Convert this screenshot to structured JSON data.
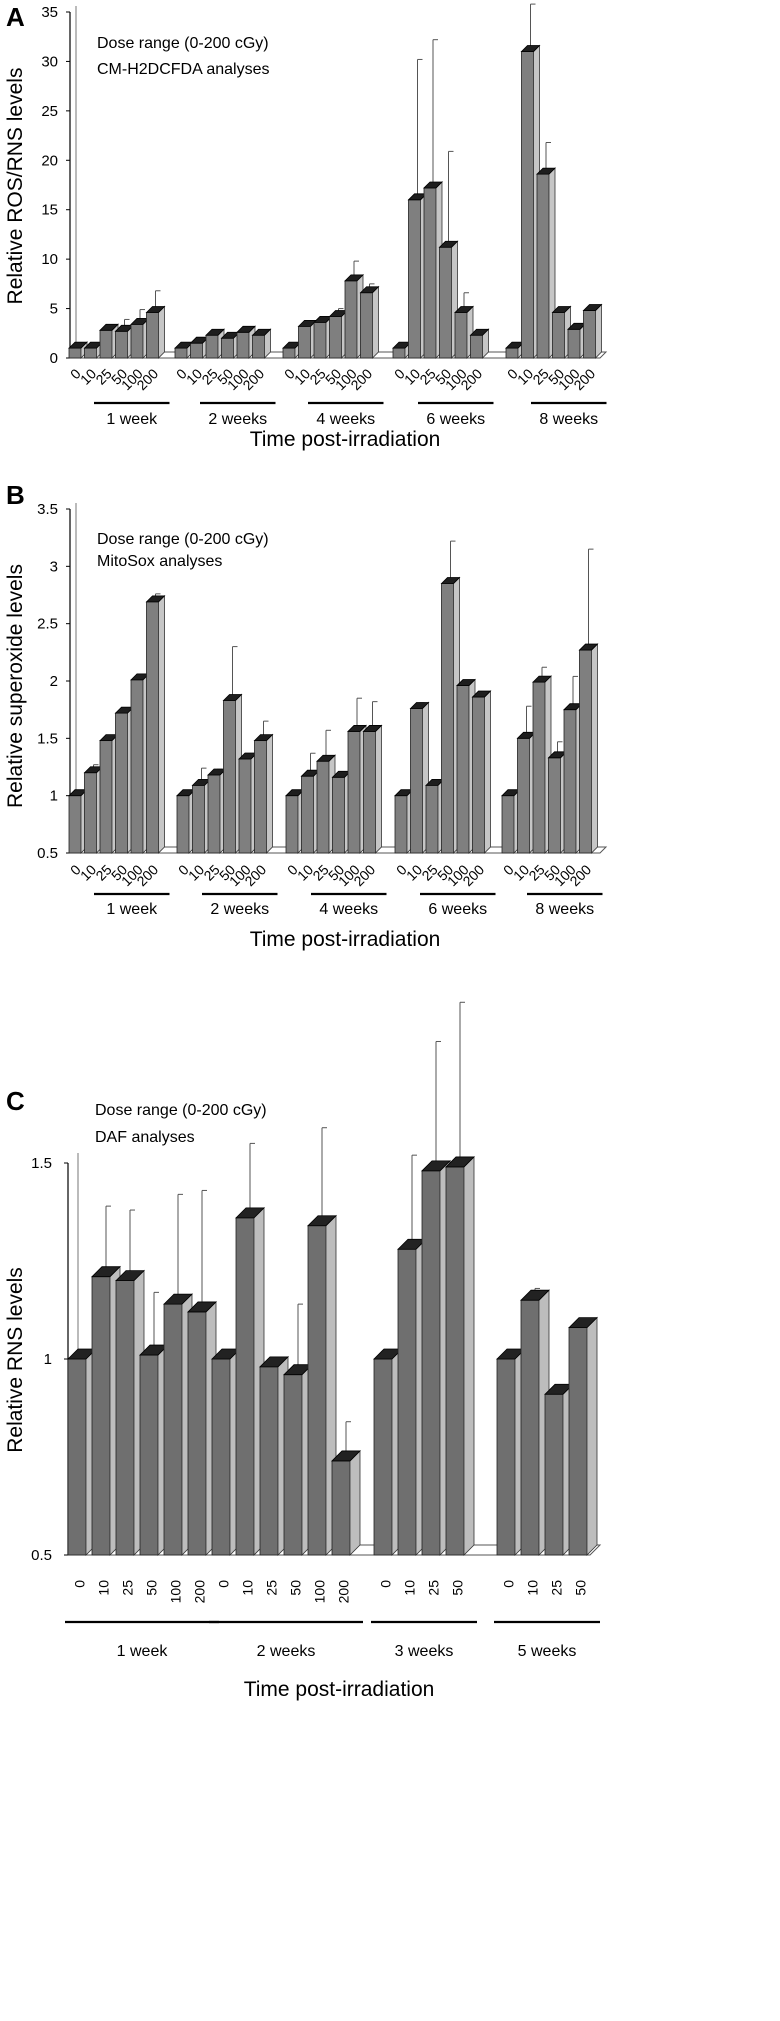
{
  "chart_data": [
    {
      "panel": "A",
      "type": "bar",
      "annotation_lines": [
        "Dose range (0-200 cGy)",
        "CM-H2DCFDA analyses"
      ],
      "ylabel": "Relative ROS/RNS levels",
      "xlabel": "Time post-irradiation",
      "ylim": [
        0,
        35
      ],
      "yticks": [
        "0",
        "5",
        "10",
        "15",
        "20",
        "25",
        "30",
        "35"
      ],
      "doses": [
        "0",
        "10",
        "25",
        "50",
        "100",
        "200"
      ],
      "groups": [
        {
          "label": "1 week",
          "values": [
            1,
            1,
            2.8,
            2.7,
            3.4,
            4.6
          ],
          "errors": [
            0,
            0,
            0.5,
            1.2,
            1.5,
            2.2
          ]
        },
        {
          "label": "2 weeks",
          "values": [
            1,
            1.5,
            2.3,
            2.0,
            2.6,
            2.3
          ],
          "errors": [
            0,
            0,
            0.2,
            0.2,
            0.4,
            0.5
          ]
        },
        {
          "label": "4 weeks",
          "values": [
            1,
            3.2,
            3.6,
            4.2,
            7.8,
            6.6
          ],
          "errors": [
            0,
            0,
            0,
            0.8,
            2.0,
            0.9
          ]
        },
        {
          "label": "6 weeks",
          "values": [
            1,
            16,
            17.2,
            11.2,
            4.6,
            2.3
          ],
          "errors": [
            0,
            14.2,
            15,
            9.7,
            2.0,
            0
          ]
        },
        {
          "label": "8 weeks",
          "values": [
            1,
            31,
            18.6,
            4.6,
            2.9,
            4.8
          ],
          "errors": [
            0,
            4.8,
            3.2,
            0,
            0,
            0
          ]
        }
      ]
    },
    {
      "panel": "B",
      "type": "bar",
      "annotation_lines": [
        "Dose range (0-200 cGy)",
        "MitoSox analyses"
      ],
      "ylabel": "Relative superoxide levels",
      "xlabel": "Time post-irradiation",
      "ylim": [
        0.5,
        3.5
      ],
      "yticks": [
        "0.5",
        "1",
        "1.5",
        "2",
        "2.5",
        "3",
        "3.5"
      ],
      "doses": [
        "0",
        "10",
        "25",
        "50",
        "100",
        "200"
      ],
      "groups": [
        {
          "label": "1 week",
          "values": [
            1,
            1.2,
            1.48,
            1.72,
            2.01,
            2.69
          ],
          "errors": [
            0,
            0.07,
            0,
            0,
            0,
            0.07
          ]
        },
        {
          "label": "2 weeks",
          "values": [
            1,
            1.09,
            1.18,
            1.83,
            1.32,
            1.48
          ],
          "errors": [
            0,
            0.15,
            0.05,
            0.47,
            0,
            0.17
          ]
        },
        {
          "label": "4 weeks",
          "values": [
            1,
            1.17,
            1.3,
            1.16,
            1.56,
            1.56
          ],
          "errors": [
            0,
            0.2,
            0.27,
            0,
            0.29,
            0.26
          ]
        },
        {
          "label": "6 weeks",
          "values": [
            1,
            1.76,
            1.09,
            2.85,
            1.96,
            1.86
          ],
          "errors": [
            0,
            0.05,
            0,
            0.37,
            0,
            0
          ]
        },
        {
          "label": "8 weeks",
          "values": [
            1,
            1.5,
            1.99,
            1.33,
            1.75,
            2.27
          ],
          "errors": [
            0,
            0.28,
            0.13,
            0.14,
            0.29,
            0.88
          ]
        }
      ]
    },
    {
      "panel": "C",
      "type": "bar",
      "annotation_lines": [
        "Dose range (0-200 cGy)",
        "DAF analyses"
      ],
      "ylabel": "Relative RNS levels",
      "xlabel": "Time post-irradiation",
      "ylim": [
        0.5,
        1.5
      ],
      "yticks": [
        "0.5",
        "1",
        "1.5"
      ],
      "groups": [
        {
          "label": "1 week",
          "doses": [
            "0",
            "10",
            "25",
            "50",
            "100",
            "200"
          ],
          "values": [
            1,
            1.21,
            1.2,
            1.01,
            1.14,
            1.12
          ],
          "errors": [
            0,
            0.18,
            0.18,
            0.16,
            0.28,
            0.31
          ]
        },
        {
          "label": "2 weeks",
          "doses": [
            "0",
            "10",
            "25",
            "50",
            "100",
            "200"
          ],
          "values": [
            1,
            1.36,
            0.98,
            0.96,
            1.34,
            0.74
          ],
          "errors": [
            0,
            0.19,
            0.02,
            0.18,
            0.25,
            0.1
          ]
        },
        {
          "label": "3 weeks",
          "doses": [
            "0",
            "10",
            "25",
            "50"
          ],
          "values": [
            1,
            1.28,
            1.48,
            1.49
          ],
          "errors": [
            0,
            0.24,
            0.33,
            0.42
          ]
        },
        {
          "label": "5 weeks",
          "doses": [
            "0",
            "10",
            "25",
            "50"
          ],
          "values": [
            1,
            1.15,
            0.91,
            1.08
          ],
          "errors": [
            0,
            0.03,
            0,
            0
          ]
        }
      ]
    }
  ]
}
